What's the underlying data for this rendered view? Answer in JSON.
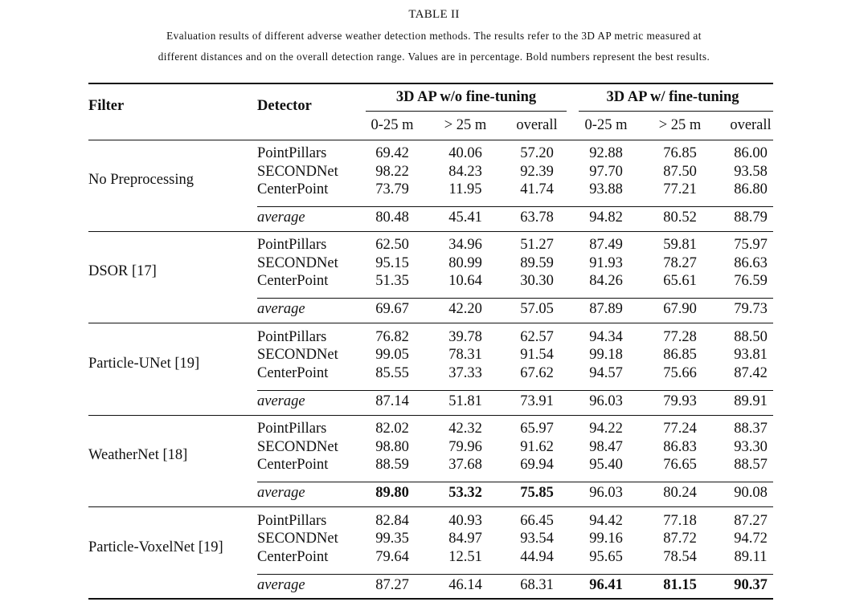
{
  "table_label": "TABLE II",
  "caption_line1": "Evaluation results of different adverse weather detection methods. The results refer to the 3D AP metric measured at",
  "caption_line2": "different distances and on the overall detection range. Values are in percentage. Bold numbers represent the best results.",
  "headers": {
    "filter": "Filter",
    "detector": "Detector",
    "group_without": "3D AP w/o fine-tuning",
    "group_with": "3D AP w/ fine-tuning",
    "columns": [
      "0-25 m",
      "> 25 m",
      "overall",
      "0-25 m",
      "> 25 m",
      "overall"
    ]
  },
  "groups": [
    {
      "filter": "No Preprocessing",
      "rows": [
        {
          "detector": "PointPillars",
          "values": [
            "69.42",
            "40.06",
            "57.20",
            "92.88",
            "76.85",
            "86.00"
          ]
        },
        {
          "detector": "SECONDNet",
          "values": [
            "98.22",
            "84.23",
            "92.39",
            "97.70",
            "87.50",
            "93.58"
          ]
        },
        {
          "detector": "CenterPoint",
          "values": [
            "73.79",
            "11.95",
            "41.74",
            "93.88",
            "77.21",
            "86.80"
          ]
        }
      ],
      "average": {
        "label": "average",
        "values": [
          "80.48",
          "45.41",
          "63.78",
          "94.82",
          "80.52",
          "88.79"
        ],
        "bold": [
          false,
          false,
          false,
          false,
          false,
          false
        ]
      }
    },
    {
      "filter": "DSOR [17]",
      "rows": [
        {
          "detector": "PointPillars",
          "values": [
            "62.50",
            "34.96",
            "51.27",
            "87.49",
            "59.81",
            "75.97"
          ]
        },
        {
          "detector": "SECONDNet",
          "values": [
            "95.15",
            "80.99",
            "89.59",
            "91.93",
            "78.27",
            "86.63"
          ]
        },
        {
          "detector": "CenterPoint",
          "values": [
            "51.35",
            "10.64",
            "30.30",
            "84.26",
            "65.61",
            "76.59"
          ]
        }
      ],
      "average": {
        "label": "average",
        "values": [
          "69.67",
          "42.20",
          "57.05",
          "87.89",
          "67.90",
          "79.73"
        ],
        "bold": [
          false,
          false,
          false,
          false,
          false,
          false
        ]
      }
    },
    {
      "filter": "Particle-UNet [19]",
      "rows": [
        {
          "detector": "PointPillars",
          "values": [
            "76.82",
            "39.78",
            "62.57",
            "94.34",
            "77.28",
            "88.50"
          ]
        },
        {
          "detector": "SECONDNet",
          "values": [
            "99.05",
            "78.31",
            "91.54",
            "99.18",
            "86.85",
            "93.81"
          ]
        },
        {
          "detector": "CenterPoint",
          "values": [
            "85.55",
            "37.33",
            "67.62",
            "94.57",
            "75.66",
            "87.42"
          ]
        }
      ],
      "average": {
        "label": "average",
        "values": [
          "87.14",
          "51.81",
          "73.91",
          "96.03",
          "79.93",
          "89.91"
        ],
        "bold": [
          false,
          false,
          false,
          false,
          false,
          false
        ]
      }
    },
    {
      "filter": "WeatherNet [18]",
      "rows": [
        {
          "detector": "PointPillars",
          "values": [
            "82.02",
            "42.32",
            "65.97",
            "94.22",
            "77.24",
            "88.37"
          ]
        },
        {
          "detector": "SECONDNet",
          "values": [
            "98.80",
            "79.96",
            "91.62",
            "98.47",
            "86.83",
            "93.30"
          ]
        },
        {
          "detector": "CenterPoint",
          "values": [
            "88.59",
            "37.68",
            "69.94",
            "95.40",
            "76.65",
            "88.57"
          ]
        }
      ],
      "average": {
        "label": "average",
        "values": [
          "89.80",
          "53.32",
          "75.85",
          "96.03",
          "80.24",
          "90.08"
        ],
        "bold": [
          true,
          true,
          true,
          false,
          false,
          false
        ]
      }
    },
    {
      "filter": "Particle-VoxelNet [19]",
      "rows": [
        {
          "detector": "PointPillars",
          "values": [
            "82.84",
            "40.93",
            "66.45",
            "94.42",
            "77.18",
            "87.27"
          ]
        },
        {
          "detector": "SECONDNet",
          "values": [
            "99.35",
            "84.97",
            "93.54",
            "99.16",
            "87.72",
            "94.72"
          ]
        },
        {
          "detector": "CenterPoint",
          "values": [
            "79.64",
            "12.51",
            "44.94",
            "95.65",
            "78.54",
            "89.11"
          ]
        }
      ],
      "average": {
        "label": "average",
        "values": [
          "87.27",
          "46.14",
          "68.31",
          "96.41",
          "81.15",
          "90.37"
        ],
        "bold": [
          false,
          false,
          false,
          true,
          true,
          true
        ]
      }
    }
  ]
}
